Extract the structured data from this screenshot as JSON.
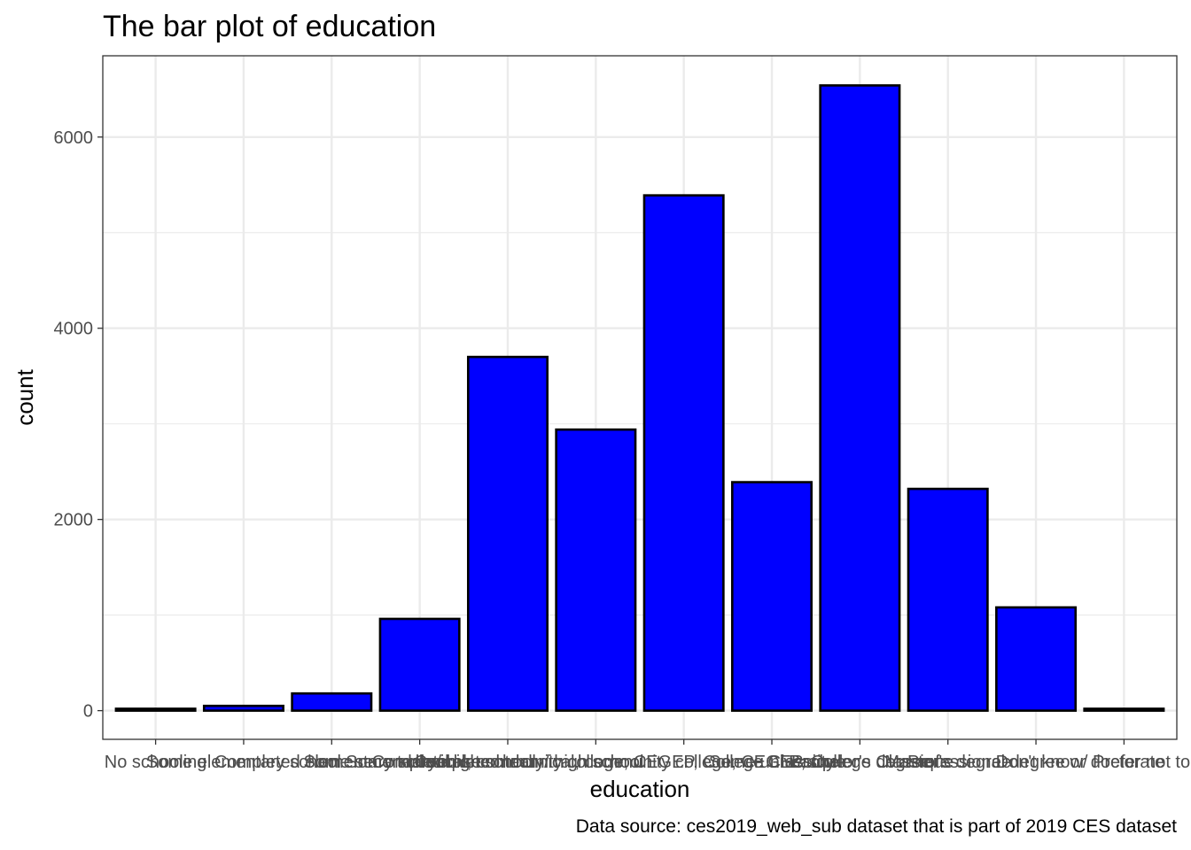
{
  "chart_data": {
    "type": "bar",
    "title": "The bar plot of education",
    "xlabel": "education",
    "ylabel": "count",
    "caption": "Data source: ces2019_web_sub dataset that is part of 2019 CES dataset",
    "categories": [
      "No schooling",
      "Some elementary school",
      "Completed elementary school",
      "Some secondary/ high school",
      "Completed secondary/ high school",
      "Some technical, community college, CEGEP, College Classique",
      "Completed technical, community college, CEGEP, College Classique",
      "Some university",
      "Bachelor's degree",
      "Master's degree",
      "Professional degree or doctorate",
      "Don't know/ Prefer not to answer"
    ],
    "values": [
      20,
      50,
      180,
      960,
      3700,
      2940,
      5390,
      2390,
      6540,
      2320,
      1080,
      20
    ],
    "ylim": [
      -300,
      6850
    ],
    "yticks": [
      0,
      2000,
      4000,
      6000
    ],
    "ytick_labels": [
      "0",
      "2000",
      "4000",
      "6000"
    ],
    "grid": true,
    "colors": {
      "bar_fill": "#0000ff",
      "bar_stroke": "#000000",
      "grid": "#ebebeb",
      "panel_border": "#333333"
    }
  }
}
